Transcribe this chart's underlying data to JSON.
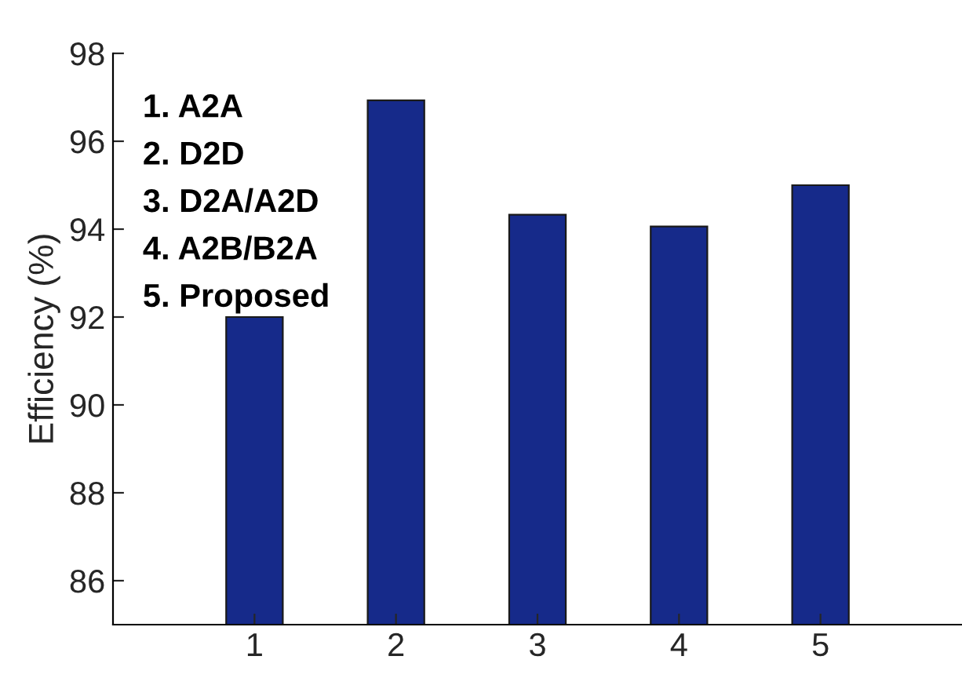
{
  "chart_data": {
    "type": "bar",
    "ylabel": "Efficiency (%)",
    "x": [
      1,
      2,
      3,
      4,
      5
    ],
    "values": [
      92.0,
      96.93,
      94.33,
      94.06,
      95.0
    ],
    "color": "#162a8a",
    "xlim": [
      0,
      6
    ],
    "xticks": [
      1,
      2,
      3,
      4,
      5
    ],
    "ylim": [
      85,
      98
    ],
    "yticks": [
      86,
      88,
      90,
      92,
      94,
      96,
      98
    ],
    "grid": false,
    "annotations": [
      "1. A2A",
      "2. D2D",
      "3. D2A/A2D",
      "4. A2B/B2A",
      "5. Proposed"
    ]
  }
}
